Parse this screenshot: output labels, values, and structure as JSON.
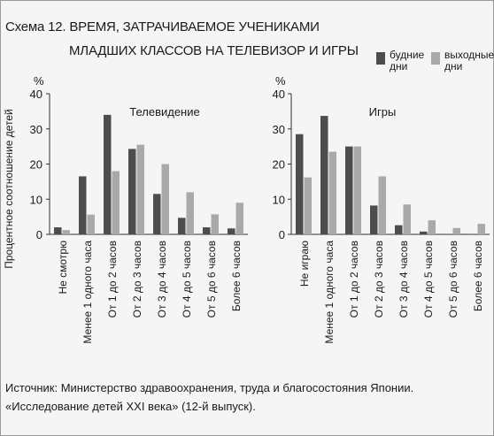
{
  "figure": {
    "title_line1": "Схема 12. ВРЕМЯ, ЗАТРАЧИВАЕМОЕ УЧЕНИКАМИ",
    "title_line2": "МЛАДШИХ КЛАССОВ НА ТЕЛЕВИЗОР И ИГРЫ",
    "source_line1": "Источник: Министерство здравоохранения, труда и благосостояния Японии.",
    "source_line2": "«Исследование детей XXI века» (12-й выпуск).",
    "legend": [
      {
        "label": "будние дни",
        "color": "#4d4d4d"
      },
      {
        "label": "выходные дни",
        "color": "#a9a9a9"
      }
    ]
  },
  "chart_data": [
    {
      "type": "bar",
      "title": "Телевидение",
      "ylabel": "Процентное соотношение детей",
      "yunit": "%",
      "ylim": [
        0,
        40
      ],
      "yticks": [
        0,
        10,
        20,
        30,
        40
      ],
      "legend_position": "top-right",
      "categories": [
        "Не смотрю",
        "Менее 1 одного часа",
        "От 1 до 2 часов",
        "От 2 до 3 часов",
        "От 3 до 4 часов",
        "От 4 до 5 часов",
        "От 5 до 6 часов",
        "Более 6 часов"
      ],
      "series": [
        {
          "name": "будние дни",
          "values": [
            2,
            16.5,
            34,
            24.3,
            11.5,
            4.7,
            2,
            1.7
          ]
        },
        {
          "name": "выходные дни",
          "values": [
            1.2,
            5.6,
            18,
            25.5,
            20,
            12,
            5.7,
            9
          ]
        }
      ]
    },
    {
      "type": "bar",
      "title": "Игры",
      "yunit": "%",
      "ylim": [
        0,
        40
      ],
      "yticks": [
        0,
        10,
        20,
        30,
        40
      ],
      "categories": [
        "Не играю",
        "Менее 1 одного часа",
        "От 1 до 2 часов",
        "От 2 до 3 часов",
        "От 3 до 4 часов",
        "От 4 до 5 часов",
        "От 5 до 6 часов",
        "Более 6 часов"
      ],
      "series": [
        {
          "name": "будние дни",
          "values": [
            28.5,
            33.7,
            25,
            8.2,
            2.6,
            0.8,
            0.1,
            0.1
          ]
        },
        {
          "name": "выходные дни",
          "values": [
            16.2,
            23.5,
            25,
            16.5,
            8.5,
            4,
            1.8,
            3
          ]
        }
      ]
    }
  ]
}
